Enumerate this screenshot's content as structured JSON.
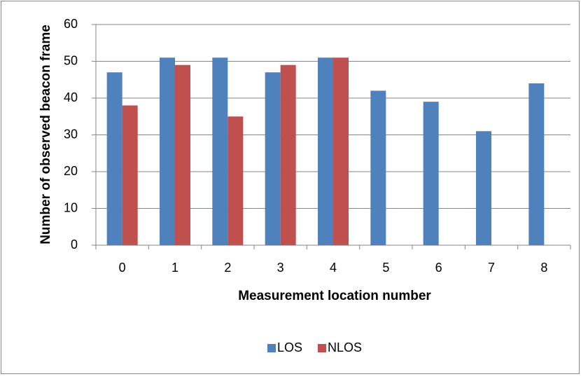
{
  "chart_data": {
    "type": "bar",
    "x_label": "Measurement location number",
    "y_label": "Number of observed beacon frame",
    "categories": [
      "0",
      "1",
      "2",
      "3",
      "4",
      "5",
      "6",
      "7",
      "8"
    ],
    "series": [
      {
        "name": "LOS",
        "color": "#4f81bd",
        "values": [
          47,
          51,
          51,
          47,
          51,
          42,
          39,
          31,
          44
        ]
      },
      {
        "name": "NLOS",
        "color": "#c0504d",
        "values": [
          38,
          49,
          35,
          49,
          51,
          null,
          null,
          null,
          null
        ]
      }
    ],
    "ylim": [
      0,
      60
    ],
    "yticks": [
      0,
      10,
      20,
      30,
      40,
      50,
      60
    ],
    "grid": true,
    "legend": "bottom"
  }
}
